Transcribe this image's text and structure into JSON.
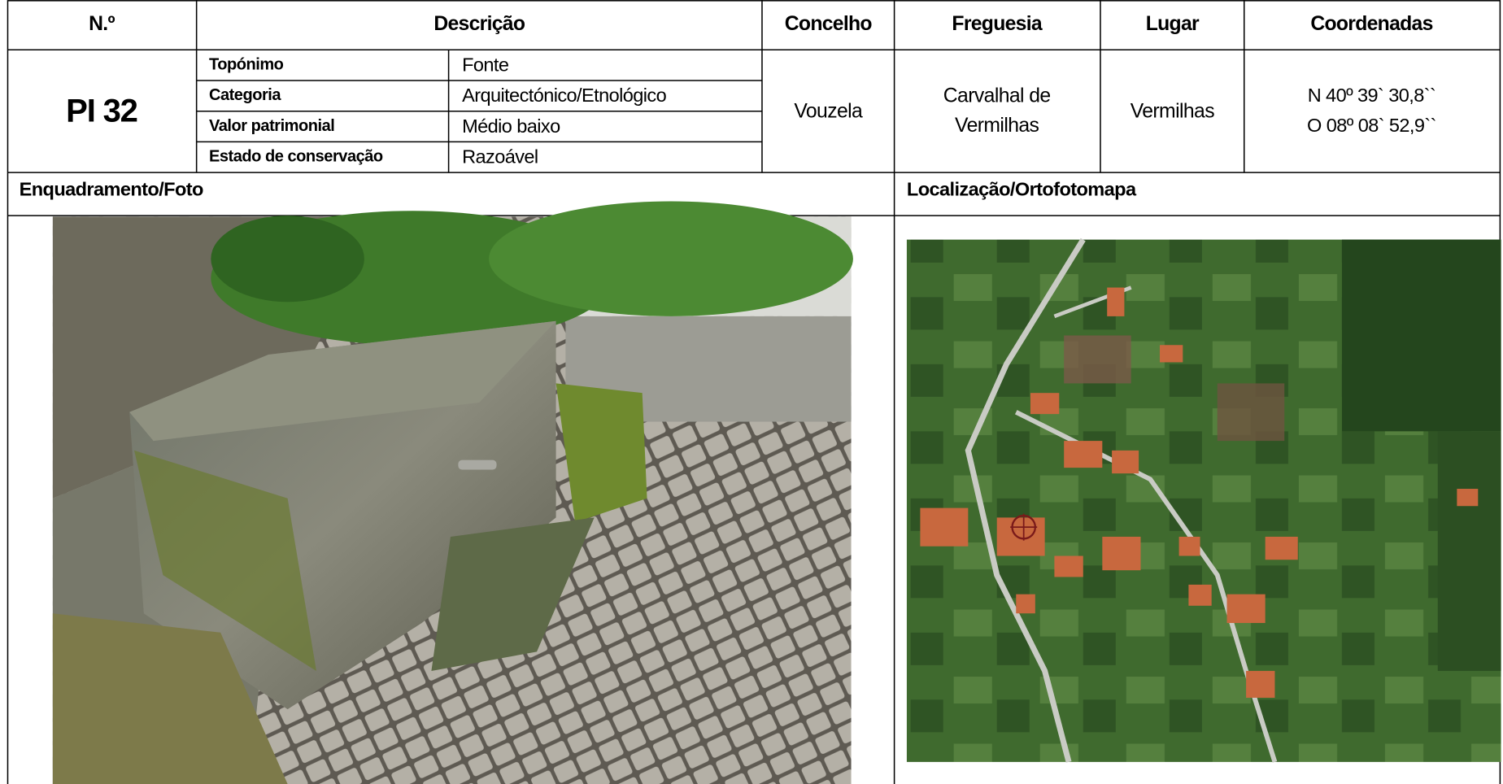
{
  "table": {
    "headers": [
      "N.º",
      "Descrição",
      "Concelho",
      "Freguesia",
      "Lugar",
      "Coordenadas"
    ],
    "id": "PI 32",
    "descricao": [
      [
        "Topónimo",
        "Fonte"
      ],
      [
        "Categoria",
        "Arquitectónico/Etnológico"
      ],
      [
        "Valor patrimonial",
        "Médio baixo"
      ],
      [
        "Estado de conservação",
        "Razoável"
      ]
    ],
    "concelho": "Vouzela",
    "freguesia": [
      "Carvalhal de",
      "Vermilhas"
    ],
    "lugar": "Vermilhas",
    "coordenadas": [
      "N 40º 39` 30,8``",
      "O 08º 08` 52,9``"
    ]
  },
  "sections": [
    "Enquadramento/Foto",
    "Localização/Ortofotomapa"
  ]
}
